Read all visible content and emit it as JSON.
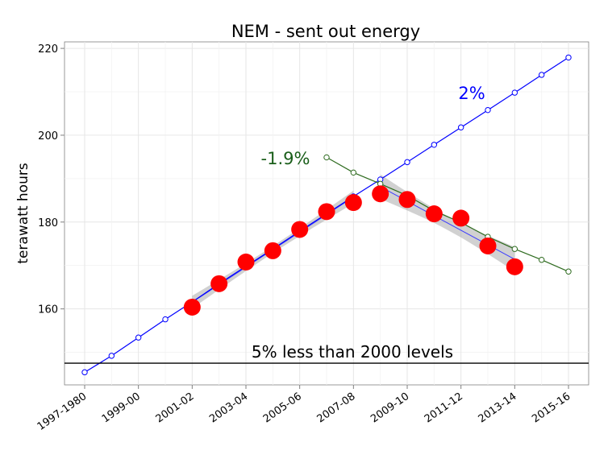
{
  "chart_data": {
    "type": "line",
    "title": "NEM - sent out energy",
    "xlabel": "",
    "ylabel": "terawatt hours",
    "ylim": [
      142.5,
      221.5
    ],
    "y_ticks": [
      160,
      180,
      200,
      220
    ],
    "x_tick_labels": [
      "1997-1980",
      "1999-00",
      "2001-02",
      "2003-04",
      "2005-06",
      "2007-08",
      "2009-10",
      "2011-12",
      "2013-14",
      "2015-16"
    ],
    "x_index_range": [
      0,
      18
    ],
    "grid": true,
    "series": [
      {
        "color": "#0000ff",
        "x": [
          0,
          1,
          2,
          3,
          4,
          5,
          6,
          7,
          8,
          9,
          10,
          11,
          12,
          13,
          14,
          15,
          16,
          17,
          18
        ],
        "values": [
          145.4,
          149.2,
          153.4,
          157.6,
          161.6,
          165.8,
          169.8,
          173.8,
          177.9,
          181.9,
          185.9,
          189.8,
          193.8,
          197.8,
          201.8,
          205.8,
          209.8,
          213.9,
          217.9
        ]
      },
      {
        "color": "#2e6b1f",
        "x": [
          9,
          10,
          11,
          12,
          13,
          14,
          15,
          16,
          17,
          18
        ],
        "values": [
          194.9,
          191.4,
          188.8,
          186.1,
          182.6,
          179.9,
          176.6,
          173.8,
          171.3,
          168.6
        ]
      },
      {
        "color": "#ff0000",
        "x": [
          4,
          5,
          6,
          7,
          8,
          9,
          10,
          11,
          12,
          13,
          14,
          15,
          16
        ],
        "values": [
          160.4,
          165.8,
          170.8,
          173.4,
          178.3,
          182.4,
          184.5,
          186.5,
          185.2,
          181.9,
          180.9,
          174.5,
          169.7
        ]
      }
    ],
    "annotations": [
      {
        "text": "2%",
        "color": "#0000ff"
      },
      {
        "text": "-1.9%",
        "color": "#1a5e1a"
      }
    ],
    "hline": {
      "value": 147.5,
      "label": "5% less than 2000 levels"
    }
  }
}
